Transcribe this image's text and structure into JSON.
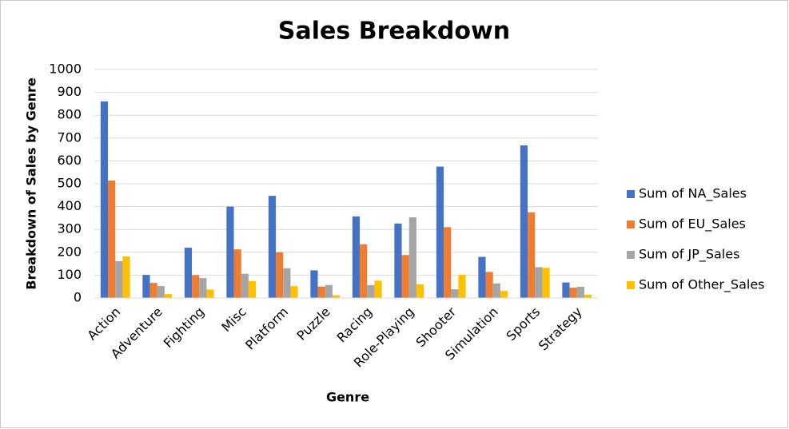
{
  "chart_data": {
    "type": "bar",
    "title": "Sales Breakdown",
    "x_label": "Genre",
    "y_label": "Breakdown of Sales by Genre",
    "categories": [
      "Action",
      "Adventure",
      "Fighting",
      "Misc",
      "Platform",
      "Puzzle",
      "Racing",
      "Role-Playing",
      "Shooter",
      "Simulation",
      "Sports",
      "Strategy"
    ],
    "series": [
      {
        "name": "Sum of NA_Sales",
        "color": "#4472c4",
        "values": [
          860,
          101,
          220,
          400,
          447,
          121,
          357,
          326,
          575,
          180,
          668,
          68
        ]
      },
      {
        "name": "Sum of EU_Sales",
        "color": "#ed7d31",
        "values": [
          514,
          66,
          100,
          213,
          200,
          50,
          235,
          188,
          310,
          114,
          375,
          45
        ]
      },
      {
        "name": "Sum of JP_Sales",
        "color": "#a5a5a5",
        "values": [
          161,
          52,
          87,
          106,
          130,
          57,
          56,
          353,
          38,
          64,
          135,
          49
        ]
      },
      {
        "name": "Sum of Other_Sales",
        "color": "#ffc000",
        "values": [
          182,
          17,
          37,
          74,
          52,
          12,
          76,
          60,
          102,
          31,
          132,
          14
        ]
      }
    ],
    "ylim": [
      0,
      1000
    ],
    "yticks": [
      0,
      100,
      200,
      300,
      400,
      500,
      600,
      700,
      800,
      900,
      1000
    ],
    "grid": true,
    "legend": "right"
  }
}
